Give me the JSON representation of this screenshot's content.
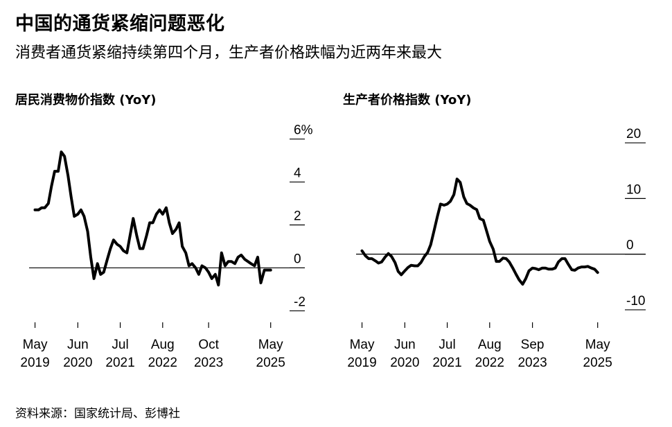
{
  "header": {
    "title": "中国的通货紧缩问题恶化",
    "subtitle": "消费者通货紧缩持续第四个月，生产者价格跌幅为近两年来最大"
  },
  "source": "资料来源：国家统计局、彭博社",
  "colors": {
    "line": "#000000",
    "zero_line": "#000000",
    "background": "#ffffff"
  },
  "chart_data": [
    {
      "type": "line",
      "title": "居民消费物价指数 (YoY)",
      "x_ticks": [
        {
          "line1": "May",
          "line2": "2019",
          "t": 2019.33
        },
        {
          "line1": "Jun",
          "line2": "2020",
          "t": 2020.42
        },
        {
          "line1": "Jul",
          "line2": "2021",
          "t": 2021.5
        },
        {
          "line1": "Aug",
          "line2": "2022",
          "t": 2022.58
        },
        {
          "line1": "Oct",
          "line2": "2023",
          "t": 2023.75
        },
        {
          "line1": "May",
          "line2": "2025",
          "t": 2025.33
        }
      ],
      "y_ticks": [
        {
          "value": 6,
          "label": "6%"
        },
        {
          "value": 4,
          "label": "4"
        },
        {
          "value": 2,
          "label": "2"
        },
        {
          "value": 0,
          "label": "0"
        },
        {
          "value": -2,
          "label": "-2"
        }
      ],
      "ylim": [
        -2.6,
        6.6
      ],
      "xlim": [
        2019.25,
        2025.6
      ],
      "zero_line": 0,
      "series": [
        {
          "x": [
            2019.33,
            2019.42,
            2019.5,
            2019.58,
            2019.67,
            2019.75,
            2019.83,
            2019.92,
            2020.0,
            2020.08,
            2020.17,
            2020.25,
            2020.33,
            2020.42,
            2020.5,
            2020.58,
            2020.67,
            2020.75,
            2020.83,
            2020.92,
            2021.0,
            2021.08,
            2021.17,
            2021.25,
            2021.33,
            2021.42,
            2021.5,
            2021.58,
            2021.67,
            2021.75,
            2021.83,
            2021.92,
            2022.0,
            2022.08,
            2022.17,
            2022.25,
            2022.33,
            2022.42,
            2022.5,
            2022.58,
            2022.67,
            2022.75,
            2022.83,
            2022.92,
            2023.0,
            2023.08,
            2023.17,
            2023.25,
            2023.33,
            2023.42,
            2023.5,
            2023.58,
            2023.67,
            2023.75,
            2023.83,
            2023.92,
            2024.0,
            2024.08,
            2024.17,
            2024.25,
            2024.33,
            2024.42,
            2024.5,
            2024.58,
            2024.67,
            2024.75,
            2024.83,
            2024.92,
            2025.0,
            2025.08,
            2025.17,
            2025.25,
            2025.33
          ],
          "y": [
            2.7,
            2.7,
            2.8,
            2.8,
            3.0,
            3.8,
            4.5,
            4.5,
            5.4,
            5.2,
            4.3,
            3.3,
            2.4,
            2.5,
            2.7,
            2.4,
            1.7,
            0.5,
            -0.5,
            0.2,
            -0.3,
            -0.2,
            0.4,
            0.9,
            1.3,
            1.1,
            1.0,
            0.8,
            0.7,
            1.5,
            2.3,
            1.5,
            0.9,
            0.9,
            1.5,
            2.1,
            2.1,
            2.5,
            2.7,
            2.5,
            2.8,
            2.1,
            1.6,
            1.8,
            2.1,
            1.0,
            0.7,
            0.1,
            0.2,
            0.0,
            -0.3,
            0.1,
            0.0,
            -0.2,
            -0.5,
            -0.3,
            -0.8,
            0.7,
            0.1,
            0.3,
            0.3,
            0.2,
            0.5,
            0.6,
            0.4,
            0.3,
            0.2,
            0.1,
            0.5,
            -0.7,
            -0.1,
            -0.1,
            -0.1
          ]
        }
      ]
    },
    {
      "type": "line",
      "title": "生产者价格指数 (YoY)",
      "x_ticks": [
        {
          "line1": "May",
          "line2": "2019",
          "t": 2019.33
        },
        {
          "line1": "Jun",
          "line2": "2020",
          "t": 2020.42
        },
        {
          "line1": "Jul",
          "line2": "2021",
          "t": 2021.5
        },
        {
          "line1": "Aug",
          "line2": "2022",
          "t": 2022.58
        },
        {
          "line1": "Sep",
          "line2": "2023",
          "t": 2023.67
        },
        {
          "line1": "May",
          "line2": "2025",
          "t": 2025.33
        }
      ],
      "y_ticks": [
        {
          "value": 20,
          "label": "20"
        },
        {
          "value": 10,
          "label": "10"
        },
        {
          "value": 0,
          "label": "0"
        },
        {
          "value": -10,
          "label": "-10"
        }
      ],
      "ylim": [
        -12.5,
        23
      ],
      "xlim": [
        2019.25,
        2025.6
      ],
      "zero_line": 0,
      "series": [
        {
          "x": [
            2019.33,
            2019.42,
            2019.5,
            2019.58,
            2019.67,
            2019.75,
            2019.83,
            2019.92,
            2020.0,
            2020.08,
            2020.17,
            2020.25,
            2020.33,
            2020.42,
            2020.5,
            2020.58,
            2020.67,
            2020.75,
            2020.83,
            2020.92,
            2021.0,
            2021.08,
            2021.17,
            2021.25,
            2021.33,
            2021.42,
            2021.5,
            2021.58,
            2021.67,
            2021.75,
            2021.83,
            2021.92,
            2022.0,
            2022.08,
            2022.17,
            2022.25,
            2022.33,
            2022.42,
            2022.5,
            2022.58,
            2022.67,
            2022.75,
            2022.83,
            2022.92,
            2023.0,
            2023.08,
            2023.17,
            2023.25,
            2023.33,
            2023.42,
            2023.5,
            2023.58,
            2023.67,
            2023.75,
            2023.83,
            2023.92,
            2024.0,
            2024.08,
            2024.17,
            2024.25,
            2024.33,
            2024.42,
            2024.5,
            2024.58,
            2024.67,
            2024.75,
            2024.83,
            2024.92,
            2025.0,
            2025.08,
            2025.17,
            2025.25,
            2025.33
          ],
          "y": [
            0.6,
            -0.3,
            -0.8,
            -0.8,
            -1.2,
            -1.6,
            -1.4,
            -0.5,
            0.1,
            -0.4,
            -1.5,
            -3.1,
            -3.7,
            -3.0,
            -2.4,
            -2.0,
            -2.1,
            -2.1,
            -1.5,
            -0.4,
            0.3,
            1.7,
            4.4,
            6.8,
            9.0,
            8.8,
            9.0,
            9.5,
            10.7,
            13.5,
            12.9,
            10.3,
            9.1,
            8.8,
            8.3,
            8.0,
            6.4,
            6.1,
            4.2,
            2.3,
            0.9,
            -1.3,
            -1.3,
            -0.7,
            -0.8,
            -1.4,
            -2.5,
            -3.6,
            -4.6,
            -5.4,
            -4.4,
            -3.0,
            -2.5,
            -2.6,
            -2.8,
            -2.5,
            -2.5,
            -2.7,
            -2.7,
            -2.5,
            -1.4,
            -0.8,
            -0.8,
            -1.8,
            -2.8,
            -2.9,
            -2.5,
            -2.3,
            -2.3,
            -2.2,
            -2.5,
            -2.7,
            -3.3
          ]
        }
      ]
    }
  ]
}
